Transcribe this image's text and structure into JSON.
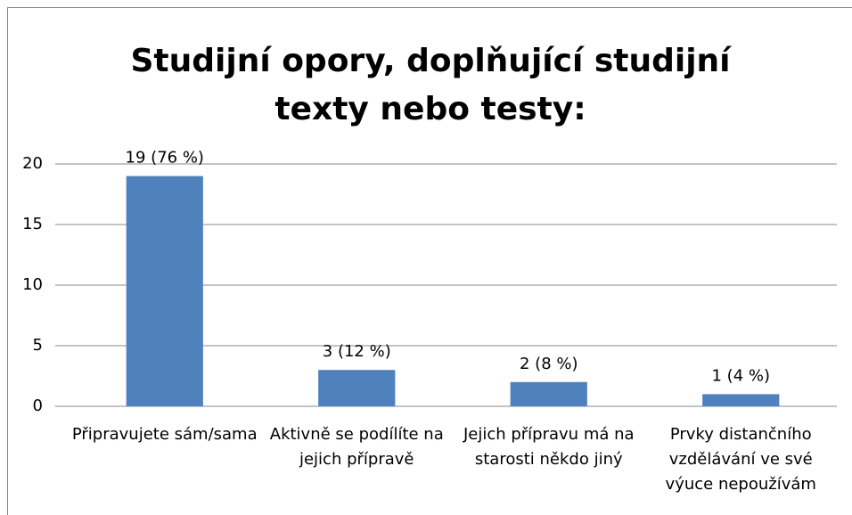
{
  "chart_data": {
    "type": "bar",
    "title": "Studijní opory, doplňující studijní texty nebo testy:",
    "categories": [
      "Připravujete sám/sama",
      "Aktivně se podílíte na jejich přípravě",
      "Jejich přípravu má na starosti někdo jiný",
      "Prvky distančního vzdělávání ve své výuce nepoužívám"
    ],
    "values": [
      19,
      3,
      2,
      1
    ],
    "value_labels": [
      "19 (76 %)",
      "3 (12 %)",
      "2 (8 %)",
      "1 (4 %)"
    ],
    "color": "#4f81bd",
    "ylim": [
      0,
      20
    ],
    "yticks": [
      0,
      5,
      10,
      15,
      20
    ],
    "grid": true
  }
}
